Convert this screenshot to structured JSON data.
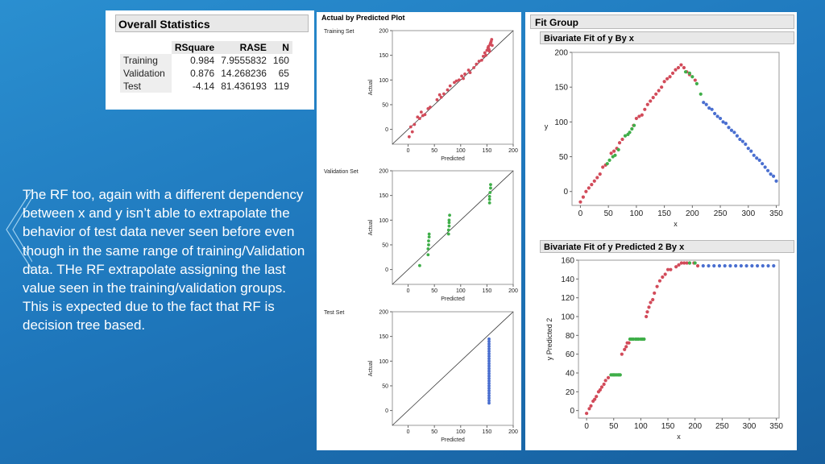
{
  "commentary": "The RF too,  again with a different dependency between x and y isn’t able to extrapolate the behavior of test data never seen before even though in the same range of training/Validation data. THe RF extrapolate assigning the last value seen in the training/validation groups. This is expected due to the fact that RF is decision tree based.",
  "colors": {
    "training": "#d24b5a",
    "validation": "#3fae49",
    "test": "#4a6fd0"
  },
  "overall_statistics": {
    "title": "Overall Statistics",
    "columns": [
      "RSquare",
      "RASE",
      "N"
    ],
    "rows": [
      {
        "label": "Training",
        "rsquare": "0.984",
        "rase": "7.9555832",
        "n": "160"
      },
      {
        "label": "Validation",
        "rsquare": "0.876",
        "rase": "14.268236",
        "n": "65"
      },
      {
        "label": "Test",
        "rsquare": "-4.14",
        "rase": "81.436193",
        "n": "119"
      }
    ]
  },
  "actual_by_predicted": {
    "title": "Actual by Predicted Plot"
  },
  "fit_group": {
    "title": "Fit Group"
  },
  "chart_data": [
    {
      "type": "scatter",
      "title": "Training Set",
      "xlabel": "Predicted",
      "ylabel": "Actual",
      "xlim": [
        -30,
        200
      ],
      "ylim": [
        -30,
        200
      ],
      "xticks": [
        0,
        50,
        100,
        150,
        200
      ],
      "yticks": [
        0,
        50,
        100,
        150,
        200
      ],
      "reference_line": "y = x",
      "grid": false,
      "series": [
        {
          "group": "training",
          "color": "#d24b5a",
          "x": [
            2,
            5,
            8,
            12,
            18,
            22,
            25,
            28,
            32,
            38,
            42,
            55,
            60,
            63,
            68,
            75,
            80,
            88,
            92,
            97,
            102,
            105,
            108,
            115,
            118,
            125,
            130,
            135,
            140,
            143,
            146,
            148,
            150,
            152,
            153,
            154,
            155,
            156,
            157,
            158,
            159,
            160
          ],
          "y": [
            -15,
            5,
            -5,
            10,
            25,
            22,
            35,
            28,
            30,
            42,
            45,
            60,
            70,
            65,
            72,
            80,
            88,
            95,
            98,
            100,
            108,
            103,
            112,
            120,
            115,
            125,
            132,
            138,
            140,
            148,
            155,
            150,
            160,
            165,
            168,
            162,
            158,
            172,
            175,
            178,
            182,
            170
          ]
        }
      ]
    },
    {
      "type": "scatter",
      "title": "Validation Set",
      "xlabel": "Predicted",
      "ylabel": "Actual",
      "xlim": [
        -30,
        200
      ],
      "ylim": [
        -30,
        200
      ],
      "xticks": [
        0,
        50,
        100,
        150,
        200
      ],
      "yticks": [
        0,
        50,
        100,
        150,
        200
      ],
      "reference_line": "y = x",
      "grid": false,
      "series": [
        {
          "group": "validation",
          "color": "#3fae49",
          "x": [
            22,
            38,
            38,
            39,
            39,
            40,
            40,
            77,
            77,
            78,
            78,
            78,
            79,
            155,
            155,
            155,
            156,
            157,
            157
          ],
          "y": [
            8,
            30,
            42,
            50,
            58,
            66,
            72,
            72,
            80,
            88,
            95,
            100,
            110,
            135,
            142,
            148,
            156,
            165,
            172
          ]
        }
      ]
    },
    {
      "type": "scatter",
      "title": "Test Set",
      "xlabel": "Predicted",
      "ylabel": "Actual",
      "xlim": [
        -30,
        200
      ],
      "ylim": [
        -30,
        200
      ],
      "xticks": [
        0,
        50,
        100,
        150,
        200
      ],
      "yticks": [
        0,
        50,
        100,
        150,
        200
      ],
      "reference_line": "y = x",
      "grid": false,
      "series": [
        {
          "group": "test",
          "color": "#4a6fd0",
          "x": [
            154,
            154,
            154,
            154,
            154,
            154,
            154,
            154,
            154,
            154,
            154,
            154,
            154,
            154,
            154,
            154,
            154,
            154,
            154,
            154,
            154,
            154,
            154,
            154,
            154,
            154,
            154
          ],
          "y": [
            15,
            20,
            25,
            30,
            35,
            40,
            45,
            50,
            55,
            60,
            65,
            70,
            75,
            80,
            85,
            90,
            95,
            100,
            105,
            110,
            115,
            120,
            125,
            130,
            135,
            140,
            145
          ]
        }
      ]
    },
    {
      "type": "scatter",
      "title": "Bivariate Fit of y By x",
      "xlabel": "x",
      "ylabel": "y",
      "xlim": [
        -15,
        355
      ],
      "ylim": [
        -20,
        200
      ],
      "xticks": [
        0,
        50,
        100,
        150,
        200,
        250,
        300,
        350
      ],
      "yticks": [
        0,
        50,
        100,
        150,
        200
      ],
      "grid": false,
      "series": [
        {
          "group": "training",
          "color": "#d24b5a",
          "x": [
            0,
            5,
            10,
            15,
            20,
            25,
            30,
            35,
            40,
            45,
            55,
            60,
            65,
            70,
            75,
            95,
            100,
            105,
            110,
            115,
            120,
            125,
            130,
            135,
            140,
            145,
            150,
            155,
            160,
            165,
            170,
            175,
            180,
            185,
            190,
            195,
            205
          ],
          "y": [
            -15,
            -8,
            0,
            5,
            10,
            15,
            20,
            25,
            35,
            38,
            55,
            58,
            62,
            70,
            75,
            95,
            105,
            108,
            110,
            118,
            125,
            130,
            135,
            140,
            145,
            150,
            158,
            162,
            165,
            170,
            175,
            178,
            182,
            178,
            172,
            168,
            160
          ]
        },
        {
          "group": "validation",
          "color": "#3fae49",
          "x": [
            48,
            52,
            58,
            62,
            68,
            80,
            85,
            88,
            92,
            96,
            188,
            195,
            200,
            208,
            215
          ],
          "y": [
            40,
            45,
            50,
            52,
            60,
            80,
            82,
            85,
            90,
            95,
            172,
            170,
            165,
            155,
            140
          ]
        },
        {
          "group": "test",
          "color": "#4a6fd0",
          "x": [
            220,
            225,
            230,
            235,
            240,
            245,
            250,
            255,
            260,
            265,
            270,
            275,
            280,
            285,
            290,
            295,
            300,
            305,
            310,
            315,
            320,
            325,
            330,
            335,
            340,
            345,
            350
          ],
          "y": [
            128,
            125,
            120,
            118,
            112,
            108,
            105,
            100,
            98,
            92,
            88,
            85,
            80,
            75,
            72,
            68,
            62,
            58,
            52,
            48,
            45,
            40,
            35,
            30,
            25,
            22,
            15
          ]
        }
      ]
    },
    {
      "type": "scatter",
      "title": "Bivariate Fit of y Predicted 2 By x",
      "xlabel": "x",
      "ylabel": "y Predicted 2",
      "xlim": [
        -15,
        355
      ],
      "ylim": [
        -8,
        160
      ],
      "xticks": [
        0,
        50,
        100,
        150,
        200,
        250,
        300,
        350
      ],
      "yticks": [
        0,
        20,
        40,
        60,
        80,
        100,
        120,
        140,
        160
      ],
      "grid": false,
      "series": [
        {
          "group": "training",
          "color": "#d24b5a",
          "x": [
            0,
            5,
            8,
            12,
            15,
            18,
            22,
            25,
            28,
            32,
            35,
            40,
            65,
            70,
            73,
            75,
            78,
            110,
            112,
            115,
            118,
            122,
            125,
            130,
            135,
            140,
            145,
            150,
            155,
            165,
            170,
            175,
            180,
            185,
            190,
            198,
            205
          ],
          "y": [
            -3,
            2,
            5,
            10,
            12,
            15,
            20,
            22,
            25,
            28,
            32,
            35,
            60,
            65,
            68,
            72,
            72,
            100,
            105,
            110,
            115,
            118,
            125,
            132,
            138,
            142,
            145,
            150,
            150,
            153,
            155,
            157,
            157,
            157,
            157,
            157,
            154
          ]
        },
        {
          "group": "validation",
          "color": "#3fae49",
          "x": [
            45,
            48,
            50,
            52,
            55,
            58,
            60,
            62,
            80,
            83,
            86,
            90,
            93,
            96,
            100,
            103,
            106,
            190,
            200
          ],
          "y": [
            38,
            38,
            38,
            38,
            38,
            38,
            38,
            38,
            76,
            76,
            76,
            76,
            76,
            76,
            76,
            76,
            76,
            157,
            157
          ]
        },
        {
          "group": "test",
          "color": "#4a6fd0",
          "x": [
            215,
            225,
            235,
            245,
            255,
            265,
            275,
            285,
            295,
            305,
            315,
            325,
            335,
            345
          ],
          "y": [
            154,
            154,
            154,
            154,
            154,
            154,
            154,
            154,
            154,
            154,
            154,
            154,
            154,
            154
          ]
        }
      ]
    }
  ]
}
